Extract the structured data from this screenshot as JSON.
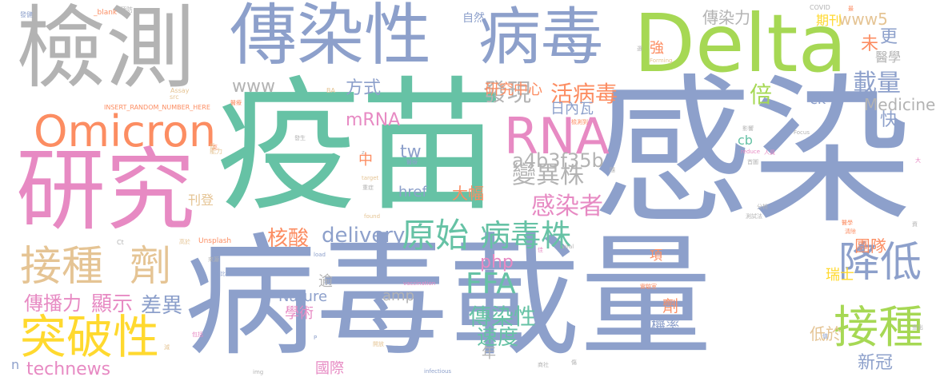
{
  "colors": {
    "blue": "#8da0cb",
    "green": "#66c2a5",
    "orange": "#fc8d62",
    "pink": "#e78ac3",
    "lime": "#a6d854",
    "yellow": "#ffd92f",
    "tan": "#e5c494",
    "gray": "#b3b3b3"
  },
  "words": [
    {
      "text": "檢測",
      "color": "#b3b3b3"
    },
    {
      "text": "傳染性",
      "color": "#8da0cb"
    },
    {
      "text": "病毒",
      "color": "#8da0cb"
    },
    {
      "text": "Delta",
      "color": "#a6d854"
    },
    {
      "text": "疫苗",
      "color": "#66c2a5"
    },
    {
      "text": "感染",
      "color": "#8da0cb"
    },
    {
      "text": "Omicron",
      "color": "#fc8d62"
    },
    {
      "text": "研究",
      "color": "#e78ac3"
    },
    {
      "text": "RNA",
      "color": "#e78ac3"
    },
    {
      "text": "病毒載量",
      "color": "#8da0cb"
    },
    {
      "text": "接種",
      "color": "#e5c494"
    },
    {
      "text": "劑",
      "color": "#e5c494"
    },
    {
      "text": "突破性",
      "color": "#ffd92f"
    },
    {
      "text": "降低",
      "color": "#8da0cb"
    },
    {
      "text": "接種",
      "color": "#a6d854"
    },
    {
      "text": "原始",
      "color": "#66c2a5"
    },
    {
      "text": "病毒株",
      "color": "#66c2a5"
    },
    {
      "text": "FFA",
      "color": "#66c2a5"
    },
    {
      "text": "delivery",
      "color": "#8da0cb"
    },
    {
      "text": "核酸",
      "color": "#fc8d62"
    },
    {
      "text": "感染者",
      "color": "#e78ac3"
    },
    {
      "text": "變異株",
      "color": "#b3b3b3"
    },
    {
      "text": "a4b3f35b",
      "color": "#b3b3b3"
    },
    {
      "text": "傳染性",
      "color": "#66c2a5"
    },
    {
      "text": "速度",
      "color": "#66c2a5"
    },
    {
      "text": "傳播力",
      "color": "#e78ac3"
    },
    {
      "text": "顯示",
      "color": "#e78ac3"
    },
    {
      "text": "差異",
      "color": "#8da0cb"
    },
    {
      "text": "technews",
      "color": "#e78ac3"
    },
    {
      "text": "發現",
      "color": "#b3b3b3"
    },
    {
      "text": "活病毒",
      "color": "#fc8d62"
    },
    {
      "text": "mRNA",
      "color": "#e78ac3"
    },
    {
      "text": "日內瓦",
      "color": "#8da0cb"
    },
    {
      "text": "研究中心",
      "color": "#fc8d62"
    },
    {
      "text": "方式",
      "color": "#8da0cb"
    },
    {
      "text": "www",
      "color": "#b3b3b3"
    },
    {
      "text": "載量",
      "color": "#8da0cb"
    },
    {
      "text": "倍",
      "color": "#a6d854"
    },
    {
      "text": "Medicine",
      "color": "#b3b3b3"
    },
    {
      "text": "ck",
      "color": "#8da0cb"
    },
    {
      "text": "快",
      "color": "#8da0cb"
    },
    {
      "text": "更",
      "color": "#8da0cb"
    },
    {
      "text": "未",
      "color": "#fc8d62"
    },
    {
      "text": "www5",
      "color": "#e5c494"
    },
    {
      "text": "傳染力",
      "color": "#b3b3b3"
    },
    {
      "text": "期刊",
      "color": "#ffd92f"
    },
    {
      "text": "醫學",
      "color": "#b3b3b3"
    },
    {
      "text": "強",
      "color": "#fc8d62"
    },
    {
      "text": "自然",
      "color": "#8da0cb"
    },
    {
      "text": "tw",
      "color": "#8da0cb"
    },
    {
      "text": "href",
      "color": "#8da0cb"
    },
    {
      "text": "大幅",
      "color": "#fc8d62"
    },
    {
      "text": "中",
      "color": "#fc8d62"
    },
    {
      "text": "php",
      "color": "#e78ac3"
    },
    {
      "text": "刊登",
      "color": "#e5c494"
    },
    {
      "text": "年",
      "color": "#b3b3b3"
    },
    {
      "text": "學術",
      "color": "#e78ac3"
    },
    {
      "text": "Nature",
      "color": "#8da0cb"
    },
    {
      "text": "amp",
      "color": "#b3b3b3"
    },
    {
      "text": "逾",
      "color": "#b3b3b3"
    },
    {
      "text": "國際",
      "color": "#e78ac3"
    },
    {
      "text": "項",
      "color": "#fc8d62"
    },
    {
      "text": "劑",
      "color": "#fc8d62"
    },
    {
      "text": "機率",
      "color": "#8da0cb"
    },
    {
      "text": "瑞士",
      "color": "#ffd92f"
    },
    {
      "text": "團隊",
      "color": "#fc8d62"
    },
    {
      "text": "a",
      "color": "#8da0cb"
    },
    {
      "text": "cb",
      "color": "#66c2a5"
    },
    {
      "text": "低於",
      "color": "#e5c494"
    },
    {
      "text": "新冠",
      "color": "#8da0cb"
    },
    {
      "text": "n",
      "color": "#8da0cb"
    },
    {
      "text": "INSERT_RANDOM_NUMBER_HERE",
      "color": "#fc8d62"
    },
    {
      "text": "_blank",
      "color": "#fc8d62"
    },
    {
      "text": "發健",
      "color": "#8da0cb"
    },
    {
      "text": "預防",
      "color": "#b3b3b3"
    },
    {
      "text": "COVID",
      "color": "#b3b3b3"
    },
    {
      "text": "Assay",
      "color": "#e5c494"
    },
    {
      "text": "src",
      "color": "#e5c494"
    },
    {
      "text": "BA",
      "color": "#e5c494"
    },
    {
      "text": "醫療",
      "color": "#fc8d62"
    },
    {
      "text": "發生",
      "color": "#b3b3b3"
    },
    {
      "text": "能力",
      "color": "#e5c494"
    },
    {
      "text": "target",
      "color": "#e5c494"
    },
    {
      "text": "重症",
      "color": "#b3b3b3"
    },
    {
      "text": "醫療",
      "color": "#8da0cb"
    },
    {
      "text": "found",
      "color": "#e5c494"
    },
    {
      "text": "Forming",
      "color": "#e5c494"
    },
    {
      "text": "檢測到",
      "color": "#fc8d62"
    },
    {
      "text": "Focus",
      "color": "#b3b3b3"
    },
    {
      "text": "影響",
      "color": "#b3b3b3"
    },
    {
      "text": "reduce",
      "color": "#e78ac3"
    },
    {
      "text": "人員",
      "color": "#e78ac3"
    },
    {
      "text": "首圖",
      "color": "#b3b3b3"
    },
    {
      "text": "分析",
      "color": "#b3b3b3"
    },
    {
      "text": "測試法",
      "color": "#b3b3b3"
    },
    {
      "text": "醫學",
      "color": "#fc8d62"
    },
    {
      "text": "清除",
      "color": "#fc8d62"
    },
    {
      "text": "Unsplash",
      "color": "#fc8d62"
    },
    {
      "text": "Ct",
      "color": "#b3b3b3"
    },
    {
      "text": "高於",
      "color": "#e5c494"
    },
    {
      "text": "來源",
      "color": "#b3b3b3"
    },
    {
      "text": "相比",
      "color": "#8da0cb"
    },
    {
      "text": "load",
      "color": "#8da0cb"
    },
    {
      "text": "vaccination",
      "color": "#e78ac3"
    },
    {
      "text": "viral",
      "color": "#b3b3b3"
    },
    {
      "text": "實驗室",
      "color": "#fc8d62"
    },
    {
      "text": "infectious",
      "color": "#8da0cb"
    },
    {
      "text": "img",
      "color": "#b3b3b3"
    },
    {
      "text": "開放",
      "color": "#e5c494"
    },
    {
      "text": "商社",
      "color": "#b3b3b3"
    },
    {
      "text": "查出",
      "color": "#b3b3b3"
    },
    {
      "text": "包括",
      "color": "#e78ac3"
    },
    {
      "text": "減",
      "color": "#e5c494"
    },
    {
      "text": "資",
      "color": "#b3b3b3"
    },
    {
      "text": "隨",
      "color": "#b3b3b3"
    },
    {
      "text": "選",
      "color": "#b3b3b3"
    },
    {
      "text": "高",
      "color": "#fc8d62"
    },
    {
      "text": "低",
      "color": "#e5c494"
    },
    {
      "text": "z",
      "color": "#b3b3b3"
    },
    {
      "text": "P",
      "color": "#8da0cb"
    },
    {
      "text": "佳",
      "color": "#e78ac3"
    },
    {
      "text": "值",
      "color": "#8da0cb"
    },
    {
      "text": "最",
      "color": "#fc8d62"
    },
    {
      "text": "傷",
      "color": "#b3b3b3"
    },
    {
      "text": "大",
      "color": "#e78ac3"
    }
  ]
}
